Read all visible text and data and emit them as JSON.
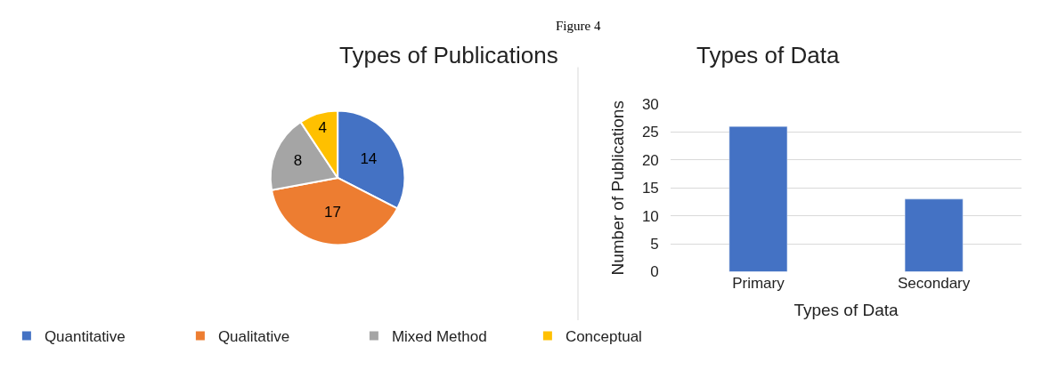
{
  "chart_data": [
    {
      "type": "pie",
      "title": "Types of Publications",
      "categories": [
        "Quantitative",
        "Qualitative",
        "Mixed Method",
        "Conceptual"
      ],
      "values": [
        14,
        17,
        8,
        4
      ],
      "colors": [
        "#4472c4",
        "#ed7d31",
        "#a5a5a5",
        "#ffc000"
      ],
      "data_labels": true,
      "legend": "bottom",
      "annotations": [
        "Figure 4"
      ]
    },
    {
      "type": "bar",
      "title": "Types of Data",
      "xlabel": "Types of Data",
      "ylabel": "Number of Publications",
      "categories": [
        "Primary",
        "Secondary"
      ],
      "values": [
        26,
        13
      ],
      "color": "#4472c4",
      "ylim": [
        0,
        30
      ],
      "yticks": [
        0,
        5,
        10,
        15,
        20,
        25,
        30
      ],
      "grid": "y"
    }
  ]
}
